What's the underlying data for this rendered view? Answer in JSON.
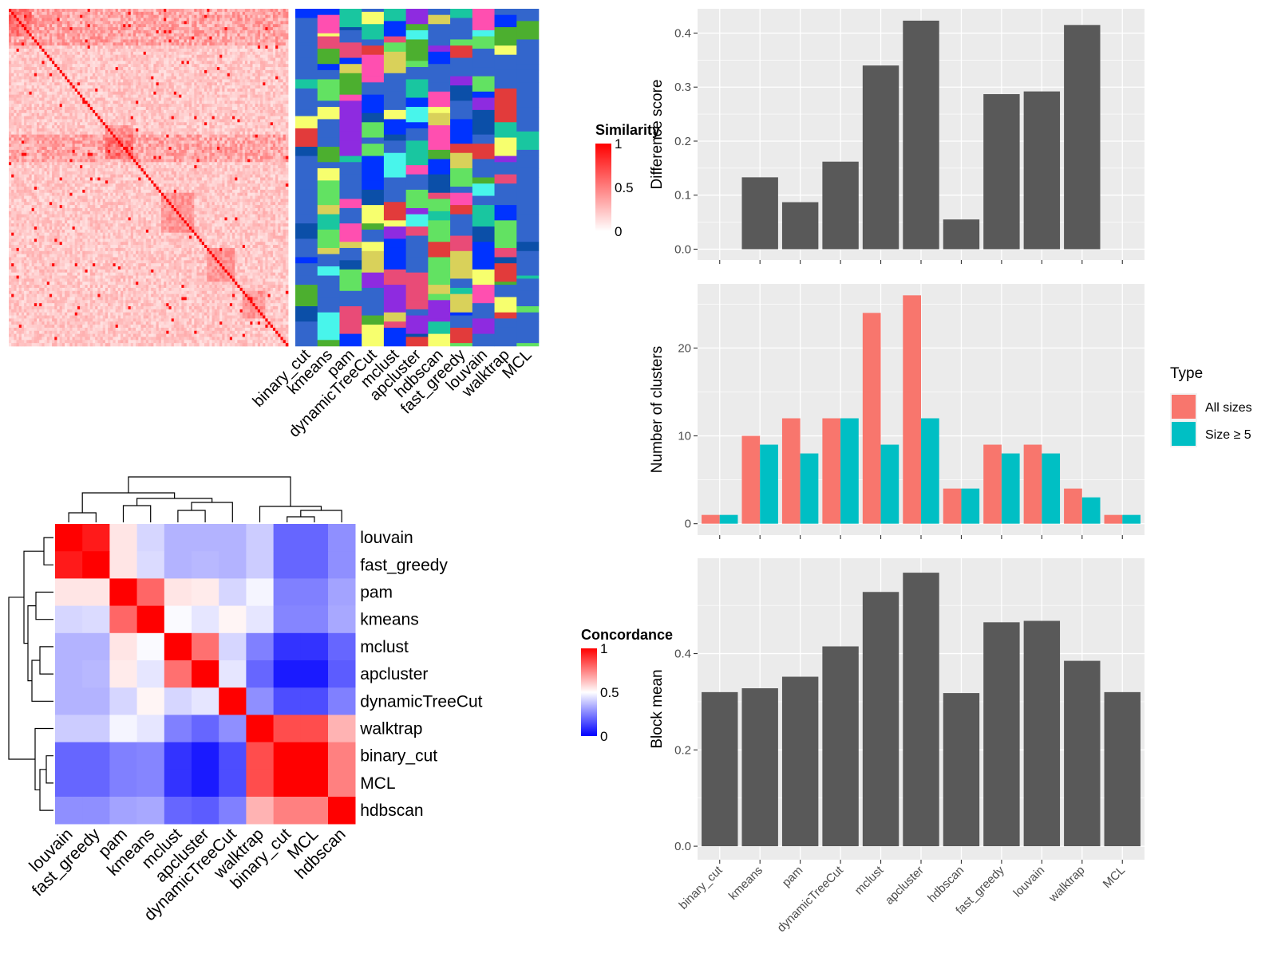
{
  "methods_order": [
    "binary_cut",
    "kmeans",
    "pam",
    "dynamicTreeCut",
    "mclust",
    "apcluster",
    "hdbscan",
    "fast_greedy",
    "louvain",
    "walktrap",
    "MCL"
  ],
  "colors": {
    "bar_dark": "#595959",
    "panel_bg": "#EBEBEB",
    "grid": "#FFFFFF",
    "all_sizes": "#F8766D",
    "size_ge5": "#00BFC4",
    "sim_high": "#FF0000",
    "sim_low": "#FFFFFF",
    "conc_high": "#FF0000",
    "conc_mid": "#FFFFFF",
    "conc_low": "#0000FF",
    "class_bg": "#3366CC"
  },
  "similarity_heatmap": {
    "legend_title": "Similarity",
    "legend_ticks": [
      "1",
      "0.5",
      "0"
    ],
    "class_columns": [
      "binary_cut",
      "kmeans",
      "pam",
      "dynamicTreeCut",
      "mclust",
      "apcluster",
      "hdbscan",
      "fast_greedy",
      "louvain",
      "walktrap",
      "MCL"
    ]
  },
  "concordance_heatmap": {
    "legend_title": "Concordance",
    "legend_ticks": [
      "1",
      "0.5",
      "0"
    ],
    "labels": [
      "louvain",
      "fast_greedy",
      "pam",
      "kmeans",
      "mclust",
      "apcluster",
      "dynamicTreeCut",
      "walktrap",
      "binary_cut",
      "MCL",
      "hdbscan"
    ],
    "matrix": [
      [
        1.0,
        0.95,
        0.55,
        0.42,
        0.35,
        0.35,
        0.35,
        0.4,
        0.2,
        0.2,
        0.28
      ],
      [
        0.95,
        1.0,
        0.55,
        0.43,
        0.35,
        0.36,
        0.35,
        0.4,
        0.2,
        0.2,
        0.28
      ],
      [
        0.55,
        0.55,
        1.0,
        0.8,
        0.55,
        0.54,
        0.42,
        0.48,
        0.25,
        0.25,
        0.32
      ],
      [
        0.42,
        0.43,
        0.8,
        1.0,
        0.49,
        0.45,
        0.52,
        0.45,
        0.26,
        0.26,
        0.33
      ],
      [
        0.35,
        0.35,
        0.55,
        0.49,
        1.0,
        0.78,
        0.42,
        0.25,
        0.1,
        0.1,
        0.2
      ],
      [
        0.35,
        0.36,
        0.54,
        0.45,
        0.78,
        1.0,
        0.45,
        0.2,
        0.05,
        0.05,
        0.18
      ],
      [
        0.35,
        0.35,
        0.42,
        0.52,
        0.42,
        0.45,
        1.0,
        0.28,
        0.15,
        0.15,
        0.25
      ],
      [
        0.4,
        0.4,
        0.48,
        0.45,
        0.25,
        0.2,
        0.28,
        1.0,
        0.85,
        0.85,
        0.65
      ],
      [
        0.2,
        0.2,
        0.25,
        0.26,
        0.1,
        0.05,
        0.15,
        0.85,
        1.0,
        1.0,
        0.75
      ],
      [
        0.2,
        0.2,
        0.25,
        0.26,
        0.1,
        0.05,
        0.15,
        0.85,
        1.0,
        1.0,
        0.75
      ],
      [
        0.28,
        0.28,
        0.32,
        0.33,
        0.2,
        0.18,
        0.25,
        0.65,
        0.75,
        0.75,
        1.0
      ]
    ]
  },
  "chart_data": [
    {
      "type": "bar",
      "categories": [
        "binary_cut",
        "kmeans",
        "pam",
        "dynamicTreeCut",
        "mclust",
        "apcluster",
        "hdbscan",
        "fast_greedy",
        "louvain",
        "walktrap",
        "MCL"
      ],
      "values": [
        0,
        0.133,
        0.087,
        0.162,
        0.34,
        0.423,
        0.055,
        0.287,
        0.292,
        0.415,
        0
      ],
      "xlabel": "",
      "ylabel": "Difference score",
      "ylim": [
        -0.02,
        0.445
      ],
      "yticks": [
        0.0,
        0.1,
        0.2,
        0.3,
        0.4
      ],
      "ytick_labels": [
        "0.0",
        "0.1",
        "0.2",
        "0.3",
        "0.4"
      ],
      "grid": true
    },
    {
      "type": "bar",
      "categories": [
        "binary_cut",
        "kmeans",
        "pam",
        "dynamicTreeCut",
        "mclust",
        "apcluster",
        "hdbscan",
        "fast_greedy",
        "louvain",
        "walktrap",
        "MCL"
      ],
      "series": [
        {
          "name": "All sizes",
          "values": [
            1,
            10,
            12,
            12,
            24,
            26,
            4,
            9,
            9,
            4,
            1
          ]
        },
        {
          "name": "Size ≥ 5",
          "values": [
            1,
            9,
            8,
            12,
            9,
            12,
            4,
            8,
            8,
            3,
            1
          ]
        }
      ],
      "xlabel": "",
      "ylabel": "Number of clusters",
      "ylim": [
        -1.3,
        27.3
      ],
      "yticks": [
        0,
        10,
        20
      ],
      "ytick_labels": [
        "0",
        "10",
        "20"
      ],
      "legend_title": "Type",
      "legend_position": "right",
      "grid": true
    },
    {
      "type": "bar",
      "categories": [
        "binary_cut",
        "kmeans",
        "pam",
        "dynamicTreeCut",
        "mclust",
        "apcluster",
        "hdbscan",
        "fast_greedy",
        "louvain",
        "walktrap",
        "MCL"
      ],
      "values": [
        0.32,
        0.328,
        0.352,
        0.415,
        0.528,
        0.568,
        0.318,
        0.465,
        0.468,
        0.385,
        0.32
      ],
      "xlabel": "",
      "ylabel": "Block mean",
      "ylim": [
        -0.028,
        0.598
      ],
      "yticks": [
        0.0,
        0.2,
        0.4
      ],
      "ytick_labels": [
        "0.0",
        "0.2",
        "0.4"
      ],
      "grid": true
    }
  ]
}
